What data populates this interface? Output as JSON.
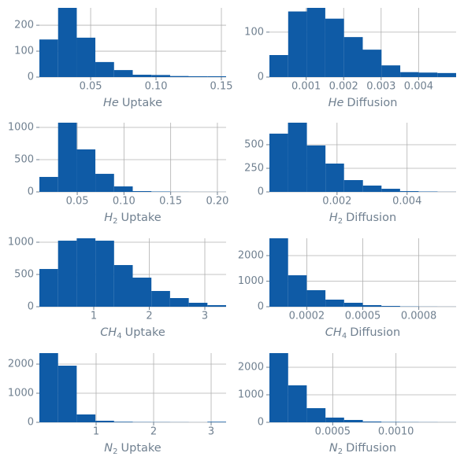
{
  "chart_data": [
    {
      "type": "histogram",
      "xlabel": {
        "symbol": "He",
        "text": "Uptake"
      },
      "color": "#0f5ba6",
      "bins": [
        0.0108,
        0.0251,
        0.0394,
        0.0536,
        0.0679,
        0.0822,
        0.0965,
        0.1108,
        0.125,
        0.1393,
        0.1536
      ],
      "counts": [
        145,
        267,
        152,
        58,
        27,
        9,
        8,
        4,
        3,
        3
      ],
      "xlim": [
        0.0108,
        0.1536
      ],
      "xticks": [
        0.05,
        {
          "value": 0.1,
          "label": "0.10"
        },
        0.15
      ],
      "ylim": [
        0,
        267
      ],
      "yticks": [
        0,
        100,
        200
      ],
      "grid": true
    },
    {
      "type": "histogram",
      "xlabel": {
        "symbol": "He",
        "text": "Diffusion"
      },
      "color": "#0f5ba6",
      "bins": [
        2e-05,
        0.00052,
        0.00102,
        0.00151,
        0.00201,
        0.00251,
        0.00301,
        0.00351,
        0.004,
        0.0045,
        0.005
      ],
      "counts": [
        49,
        146,
        154,
        130,
        89,
        61,
        26,
        11,
        10,
        9
      ],
      "xlim": [
        2e-05,
        0.005
      ],
      "xticks": [
        0.001,
        0.002,
        0.003,
        0.004
      ],
      "ylim": [
        0,
        154
      ],
      "yticks": [
        0,
        100
      ],
      "grid": true
    },
    {
      "type": "histogram",
      "xlabel": {
        "symbol": "H",
        "subscript": "2",
        "text": "Uptake"
      },
      "color": "#0f5ba6",
      "bins": [
        0.0095,
        0.0295,
        0.0495,
        0.0694,
        0.0894,
        0.1094,
        0.1294,
        0.1494,
        0.1693,
        0.1893,
        0.2093
      ],
      "counts": [
        232,
        1073,
        659,
        280,
        85,
        12,
        6,
        2,
        1,
        1
      ],
      "xlim": [
        0.0095,
        0.2093
      ],
      "xticks": [
        0.05,
        {
          "value": 0.1,
          "label": "0.10"
        },
        0.15,
        {
          "value": 0.2,
          "label": "0.20"
        }
      ],
      "ylim": [
        0,
        1073
      ],
      "yticks": [
        0,
        500,
        1000
      ],
      "grid": true
    },
    {
      "type": "histogram",
      "xlabel": {
        "symbol": "H",
        "subscript": "2",
        "text": "Diffusion"
      },
      "color": "#0f5ba6",
      "bins": [
        7e-05,
        0.0006,
        0.00114,
        0.00167,
        0.0022,
        0.00274,
        0.00327,
        0.0038,
        0.00433,
        0.00487,
        0.0054
      ],
      "counts": [
        617,
        733,
        492,
        300,
        125,
        67,
        33,
        8,
        4,
        1
      ],
      "xlim": [
        7e-05,
        0.0054
      ],
      "xticks": [
        0.002,
        0.004
      ],
      "ylim": [
        0,
        733
      ],
      "yticks": [
        0,
        250,
        500
      ],
      "grid": true
    },
    {
      "type": "histogram",
      "xlabel": {
        "symbol": "CH",
        "subscript": "4",
        "text": "Uptake"
      },
      "color": "#0f5ba6",
      "bins": [
        0.021,
        0.357,
        0.693,
        1.03,
        1.366,
        1.702,
        2.038,
        2.374,
        2.711,
        3.047,
        3.383
      ],
      "counts": [
        585,
        1024,
        1061,
        1024,
        646,
        451,
        244,
        134,
        61,
        24
      ],
      "xlim": [
        0.021,
        3.383
      ],
      "xticks": [
        1,
        2,
        3
      ],
      "ylim": [
        0,
        1061
      ],
      "yticks": [
        0,
        500,
        1000
      ],
      "grid": true
    },
    {
      "type": "histogram",
      "xlabel": {
        "symbol": "CH",
        "subscript": "4",
        "text": "Diffusion"
      },
      "color": "#0f5ba6",
      "bins": [
        0,
        0.0001,
        0.0002,
        0.0003,
        0.0004,
        0.0005,
        0.0006,
        0.0007,
        0.0008,
        0.0009,
        0.001
      ],
      "counts": [
        2677,
        1230,
        646,
        277,
        154,
        62,
        30,
        10,
        5,
        3
      ],
      "xlim": [
        0,
        0.001
      ],
      "xticks": [
        0.0002,
        0.0005,
        0.0008
      ],
      "ylim": [
        0,
        2677
      ],
      "yticks": [
        0,
        1000,
        2000
      ],
      "grid": true
    },
    {
      "type": "histogram",
      "xlabel": {
        "symbol": "N",
        "subscript": "2",
        "text": "Uptake"
      },
      "color": "#0f5ba6",
      "bins": [
        0.014,
        0.339,
        0.663,
        0.988,
        1.312,
        1.637,
        1.962,
        2.286,
        2.611,
        2.935,
        3.26
      ],
      "counts": [
        2378,
        1946,
        270,
        54,
        20,
        10,
        8,
        5,
        2,
        20
      ],
      "xlim": [
        0.014,
        3.26
      ],
      "xticks": [
        1,
        2,
        3
      ],
      "ylim": [
        0,
        2378
      ],
      "yticks": [
        0,
        1000,
        2000
      ],
      "grid": true
    },
    {
      "type": "histogram",
      "xlabel": {
        "symbol": "N",
        "subscript": "2",
        "text": "Diffusion"
      },
      "color": "#0f5ba6",
      "bins": [
        0,
        0.000148,
        0.000295,
        0.000443,
        0.00059,
        0.000738,
        0.000885,
        0.00103,
        0.00118,
        0.00133,
        0.001475
      ],
      "counts": [
        2514,
        1343,
        514,
        171,
        86,
        29,
        14,
        9,
        6,
        3
      ],
      "xlim": [
        0,
        0.001475
      ],
      "xticks": [
        0.0005,
        {
          "value": 0.001,
          "label": "0.0010"
        }
      ],
      "ylim": [
        0,
        2514
      ],
      "yticks": [
        0,
        1000,
        2000
      ],
      "grid": true
    }
  ]
}
